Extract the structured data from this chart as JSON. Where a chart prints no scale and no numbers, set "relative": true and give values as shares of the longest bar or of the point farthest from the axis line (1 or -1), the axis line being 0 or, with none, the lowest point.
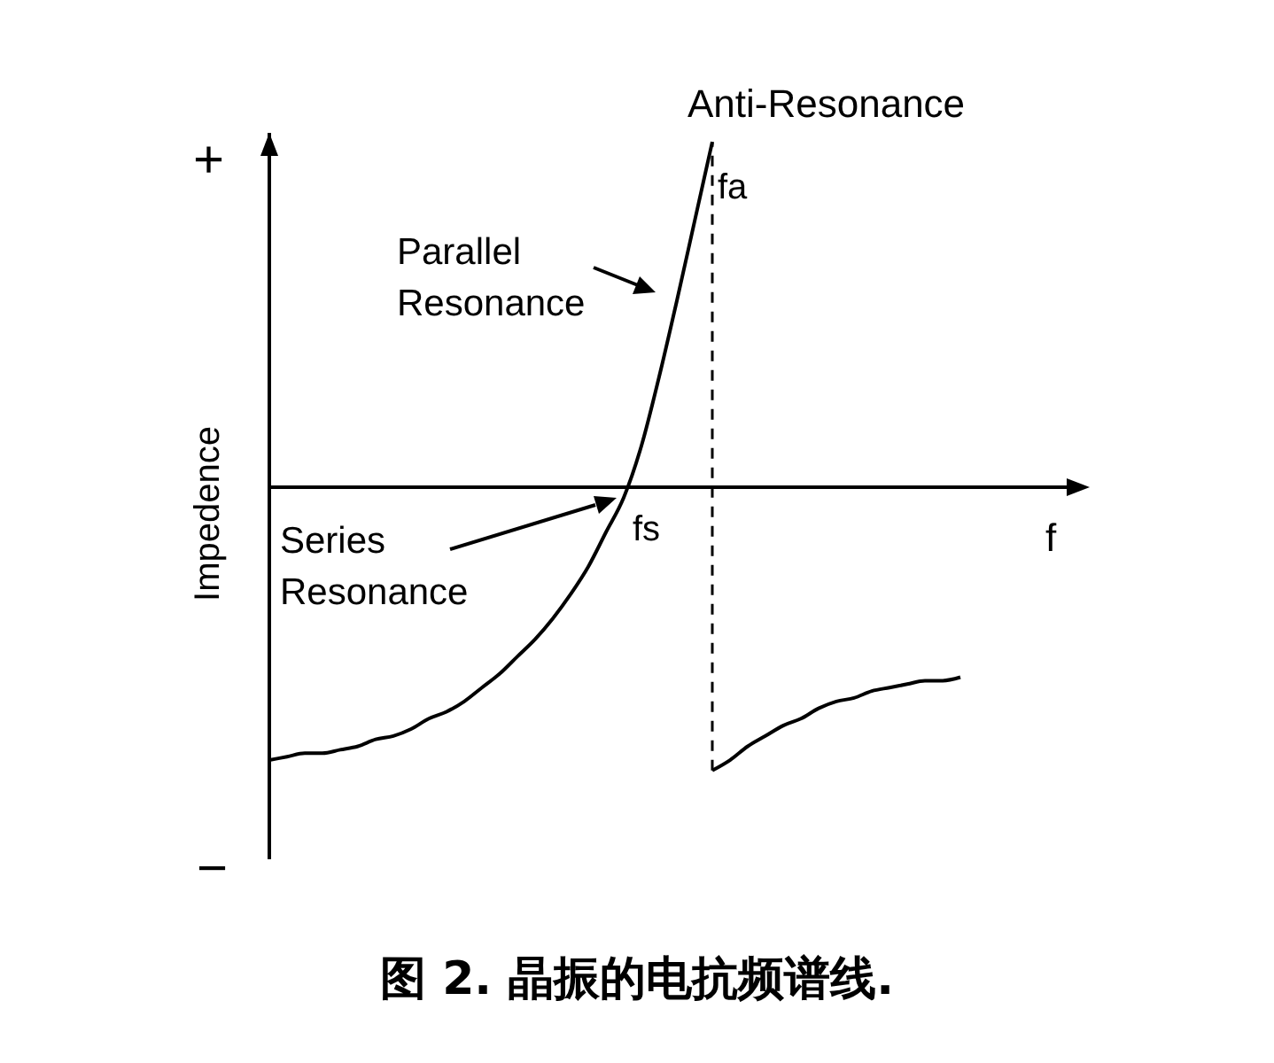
{
  "chart_data": {
    "type": "line",
    "relative": true,
    "title": "图 2. 晶振的电抗频谱线.",
    "xlabel": "f",
    "ylabel": "Impedence",
    "marker": "none",
    "categories": [
      null,
      null,
      null,
      null,
      null,
      null,
      null,
      null,
      null,
      null,
      null,
      null,
      null,
      null,
      null,
      null,
      null,
      null,
      null,
      null,
      null,
      null,
      null,
      null,
      null,
      null,
      null,
      null,
      null,
      null,
      null,
      null,
      null,
      null,
      null,
      null,
      null,
      null,
      null,
      null,
      null,
      null,
      null,
      null,
      null,
      null
    ],
    "series": [
      {
        "color": "#000000",
        "values": [
          -0.79,
          -0.78,
          -0.77,
          -0.77,
          -0.76,
          -0.75,
          -0.73,
          -0.72,
          -0.7,
          -0.67,
          -0.65,
          -0.62,
          -0.58,
          -0.54,
          -0.49,
          -0.44,
          -0.38,
          -0.31,
          -0.23,
          -0.13,
          -0.03,
          0.12,
          0.32,
          0.54,
          0.77,
          1.0,
          null,
          null,
          null,
          null,
          null,
          null,
          null,
          null,
          null,
          null,
          null,
          null,
          null,
          null,
          null,
          null,
          null,
          null,
          null,
          null
        ]
      },
      {
        "color": "#000000",
        "values": [
          null,
          null,
          null,
          null,
          null,
          null,
          null,
          null,
          null,
          null,
          null,
          null,
          null,
          null,
          null,
          null,
          null,
          null,
          null,
          null,
          null,
          null,
          null,
          null,
          null,
          -0.82,
          -0.79,
          -0.75,
          -0.72,
          -0.69,
          -0.67,
          -0.64,
          -0.62,
          -0.61,
          -0.59,
          -0.58,
          -0.57,
          -0.56,
          -0.56,
          -0.55,
          null,
          null,
          null,
          null,
          null,
          null
        ]
      }
    ],
    "annotations": [
      "Anti-Resonance",
      "fa",
      "Parallel Resonance",
      "fs",
      "Series Resonance",
      "+",
      "−"
    ]
  }
}
